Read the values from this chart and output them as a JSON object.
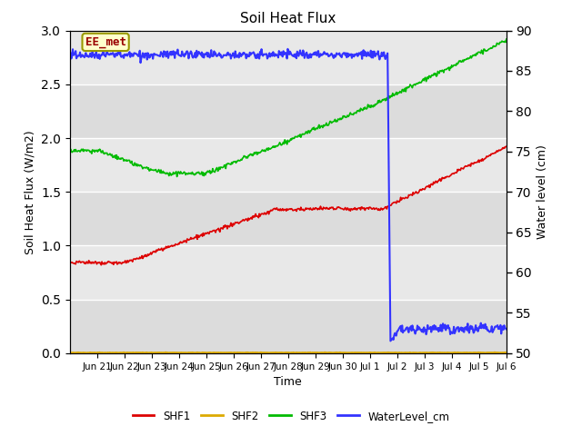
{
  "title": "Soil Heat Flux",
  "ylabel_left": "Soil Heat Flux (W/m2)",
  "ylabel_right": "Water level (cm)",
  "xlabel": "Time",
  "annotation_text": "EE_met",
  "background_color": "#e8e8e8",
  "ylim_left": [
    0.0,
    3.0
  ],
  "ylim_right": [
    50,
    90
  ],
  "legend_labels": [
    "SHF1",
    "SHF2",
    "SHF3",
    "WaterLevel_cm"
  ],
  "colors": {
    "SHF1": "#dd0000",
    "SHF2": "#ddaa00",
    "SHF3": "#00bb00",
    "WaterLevel_cm": "#3333ff"
  },
  "tick_positions": [
    1,
    2,
    3,
    4,
    5,
    6,
    7,
    8,
    9,
    10,
    11,
    12,
    13,
    14,
    15,
    16
  ],
  "tick_labels": [
    "Jun 21",
    "Jun 22",
    "Jun 23",
    "Jun 24",
    "Jun 25",
    "Jun 26",
    "Jun 27",
    "Jun 28",
    "Jun 29",
    "Jun 30",
    "Jul 1",
    "Jul 2",
    "Jul 3",
    "Jul 4",
    "Jul 5",
    "Jul 6"
  ],
  "yticks_left": [
    0.0,
    0.5,
    1.0,
    1.5,
    2.0,
    2.5,
    3.0
  ],
  "yticks_right": [
    50,
    55,
    60,
    65,
    70,
    75,
    80,
    85,
    90
  ],
  "band_colors": [
    "#e0e0e0",
    "#d0d0d0"
  ]
}
